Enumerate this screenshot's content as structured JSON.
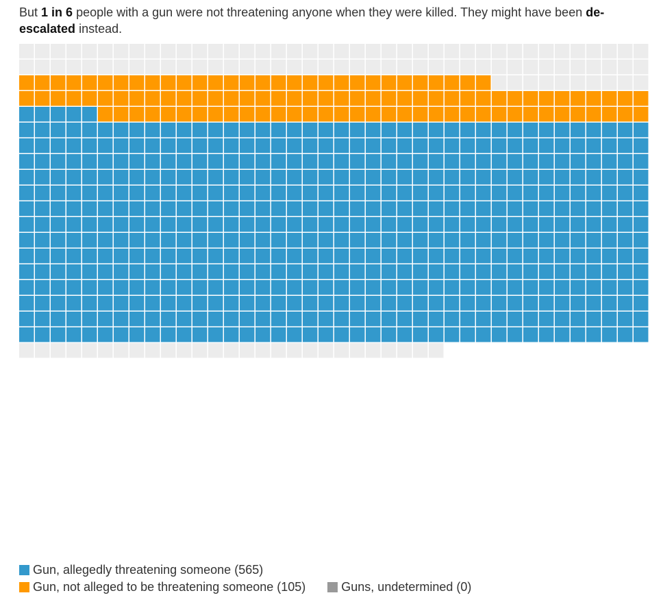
{
  "headline": {
    "part1": "But ",
    "bold1": "1 in 6",
    "part2": " people with a gun were not threatening anyone when they were killed. They might have been ",
    "bold2": "de-escalated",
    "part3": " instead."
  },
  "colors": {
    "threatening": "#3399cc",
    "not_threatening": "#ff9900",
    "undetermined": "#999999",
    "empty": "#ececec"
  },
  "chart_data": {
    "type": "waffle",
    "columns": 40,
    "total_cells": 787,
    "series": [
      {
        "name": "Gun, allegedly threatening someone",
        "value": 565,
        "key": "threatening"
      },
      {
        "name": "Gun, not alleged to be threatening someone",
        "value": 105,
        "key": "not_threatening"
      },
      {
        "name": "Guns, undetermined",
        "value": 0,
        "key": "undetermined"
      }
    ],
    "fill_order": "bottom-up",
    "legend_position": "bottom-left"
  },
  "legend": {
    "threatening_label": "Gun, allegedly threatening someone (565)",
    "not_threatening_label": "Gun, not alleged to be threatening someone (105)",
    "undetermined_label": "Guns, undetermined (0)"
  }
}
